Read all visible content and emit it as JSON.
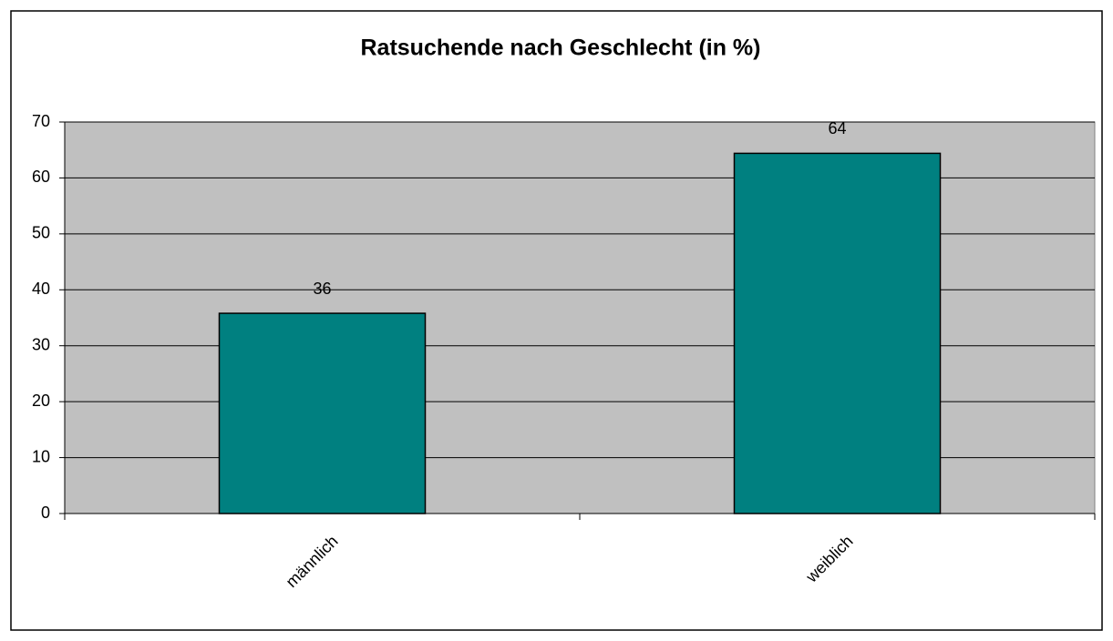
{
  "chart_data": {
    "type": "bar",
    "title": "Ratsuchende nach Geschlecht (in %)",
    "categories": [
      "männlich",
      "weiblich"
    ],
    "values": [
      35.8,
      64.4
    ],
    "value_labels": [
      "36",
      "64"
    ],
    "color": "#008080",
    "ylim": [
      0,
      70
    ],
    "yticks": [
      0,
      10,
      20,
      30,
      40,
      50,
      60,
      70
    ],
    "grid": true
  }
}
